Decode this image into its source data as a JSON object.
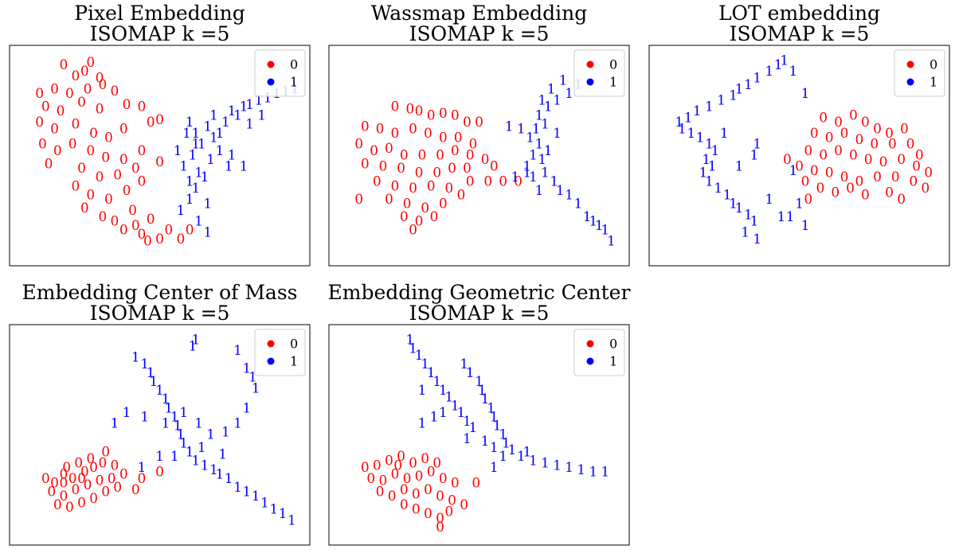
{
  "chart_data": [
    {
      "type": "scatter",
      "title": "Pixel Embedding",
      "subtitle": "ISOMAP k =5",
      "xlim": [
        0,
        100
      ],
      "ylim": [
        0,
        100
      ],
      "legend": "upper right",
      "series": [
        {
          "name": "0",
          "color": "#ff0000",
          "x": [
            27,
            18,
            25,
            22,
            30,
            10,
            15,
            20,
            26,
            31,
            35,
            12,
            17,
            24,
            30,
            39,
            44,
            50,
            47,
            10,
            15,
            22,
            28,
            33,
            38,
            11,
            16,
            21,
            27,
            32,
            38,
            44,
            50,
            13,
            24,
            30,
            36,
            42,
            22,
            27,
            33,
            39,
            44,
            25,
            31,
            35,
            41,
            47,
            38,
            44,
            50,
            53,
            46,
            57,
            60,
            42
          ],
          "values": [
            92,
            91,
            88,
            86,
            85,
            78,
            80,
            78,
            80,
            82,
            79,
            72,
            70,
            74,
            71,
            73,
            72,
            66,
            65,
            65,
            62,
            64,
            60,
            58,
            62,
            55,
            52,
            55,
            52,
            49,
            48,
            52,
            47,
            46,
            44,
            40,
            41,
            44,
            36,
            32,
            30,
            34,
            38,
            26,
            22,
            20,
            25,
            21,
            16,
            14,
            12,
            16,
            11,
            12,
            16,
            18
          ]
        },
        {
          "name": "1",
          "color": "#0000ff",
          "x": [
            57,
            60,
            62,
            63,
            60,
            58,
            61,
            64,
            62,
            66,
            68,
            70,
            67,
            65,
            63,
            66,
            66,
            68,
            72,
            74,
            76,
            78,
            80,
            83,
            86,
            89,
            92,
            95,
            56,
            60,
            70,
            74,
            78,
            73,
            80,
            84,
            62,
            59
          ],
          "values": [
            25,
            30,
            35,
            42,
            38,
            45,
            50,
            55,
            60,
            63,
            58,
            52,
            48,
            40,
            20,
            15,
            28,
            68,
            65,
            70,
            68,
            72,
            73,
            75,
            76,
            78,
            79,
            80,
            52,
            65,
            60,
            50,
            45,
            45,
            64,
            68,
            55,
            60
          ]
        }
      ]
    },
    {
      "type": "scatter",
      "title": "Wassmap Embedding",
      "subtitle": "ISOMAP k =5",
      "xlim": [
        0,
        100
      ],
      "ylim": [
        0,
        100
      ],
      "legend": "upper right",
      "series": [
        {
          "name": "0",
          "color": "#ff0000",
          "x": [
            22,
            27,
            30,
            34,
            38,
            42,
            46,
            50,
            12,
            17,
            22,
            28,
            33,
            38,
            43,
            48,
            10,
            15,
            20,
            25,
            31,
            37,
            42,
            47,
            52,
            12,
            18,
            24,
            30,
            36,
            41,
            46,
            55,
            16,
            22,
            28,
            34,
            40,
            47,
            53,
            10,
            20,
            26,
            32,
            38,
            44,
            25,
            30,
            35,
            28,
            58,
            63
          ],
          "values": [
            72,
            71,
            70,
            68,
            69,
            68,
            65,
            65,
            63,
            62,
            60,
            62,
            60,
            58,
            58,
            55,
            55,
            52,
            53,
            50,
            50,
            50,
            52,
            50,
            48,
            46,
            45,
            44,
            42,
            42,
            44,
            44,
            45,
            38,
            36,
            35,
            36,
            35,
            38,
            38,
            30,
            30,
            28,
            26,
            28,
            32,
            22,
            20,
            22,
            16,
            38,
            38
          ]
        },
        {
          "name": "1",
          "color": "#0000ff",
          "x": [
            83,
            80,
            76,
            73,
            70,
            72,
            69,
            67,
            70,
            68,
            71,
            66,
            68,
            72,
            75,
            77,
            80,
            83,
            86,
            88,
            90,
            92,
            94,
            60,
            64,
            71,
            74,
            78,
            76,
            73,
            70,
            66,
            62
          ],
          "values": [
            82,
            78,
            75,
            72,
            68,
            64,
            62,
            58,
            55,
            50,
            48,
            45,
            40,
            42,
            38,
            34,
            32,
            28,
            22,
            20,
            18,
            16,
            11,
            63,
            62,
            75,
            80,
            84,
            60,
            52,
            34,
            42,
            40
          ]
        }
      ]
    },
    {
      "type": "scatter",
      "title": "LOT embedding",
      "subtitle": "ISOMAP k =5",
      "xlim": [
        0,
        100
      ],
      "ylim": [
        0,
        100
      ],
      "legend": "upper right",
      "series": [
        {
          "name": "0",
          "color": "#ff0000",
          "x": [
            58,
            63,
            68,
            72,
            76,
            80,
            85,
            55,
            60,
            65,
            70,
            75,
            81,
            87,
            90,
            53,
            58,
            63,
            68,
            73,
            78,
            84,
            89,
            93,
            46,
            50,
            55,
            60,
            65,
            70,
            76,
            82,
            88,
            92,
            52,
            57,
            62,
            67,
            72,
            80,
            53,
            84
          ],
          "values": [
            67,
            65,
            68,
            65,
            62,
            60,
            62,
            60,
            58,
            60,
            57,
            55,
            55,
            55,
            50,
            52,
            50,
            52,
            50,
            48,
            47,
            48,
            45,
            42,
            48,
            45,
            43,
            42,
            40,
            38,
            40,
            40,
            38,
            35,
            38,
            35,
            33,
            35,
            32,
            33,
            30,
            30
          ]
        },
        {
          "name": "1",
          "color": "#0000ff",
          "x": [
            45,
            43,
            40,
            36,
            33,
            30,
            28,
            24,
            20,
            16,
            13,
            10,
            11,
            14,
            17,
            20,
            22,
            19,
            21,
            18,
            20,
            23,
            26,
            28,
            30,
            33,
            35,
            32,
            36,
            44,
            47,
            50,
            52,
            40,
            30,
            35,
            25,
            52,
            48,
            36,
            48
          ],
          "values": [
            93,
            91,
            88,
            85,
            82,
            80,
            77,
            75,
            72,
            70,
            67,
            65,
            62,
            60,
            58,
            55,
            52,
            48,
            45,
            42,
            38,
            35,
            32,
            28,
            26,
            23,
            20,
            15,
            12,
            22,
            22,
            28,
            18,
            30,
            45,
            50,
            60,
            78,
            88,
            55,
            43
          ]
        }
      ]
    },
    {
      "type": "scatter",
      "title": "Embedding Center of Mass",
      "subtitle": "ISOMAP k =5",
      "xlim": [
        0,
        100
      ],
      "ylim": [
        0,
        100
      ],
      "legend": "upper right",
      "series": [
        {
          "name": "0",
          "color": "#ff0000",
          "x": [
            12,
            15,
            18,
            21,
            25,
            28,
            31,
            14,
            18,
            22,
            26,
            30,
            34,
            16,
            20,
            24,
            28,
            32,
            36,
            19,
            23,
            27,
            32,
            35,
            38,
            44,
            50,
            42,
            24,
            18
          ],
          "values": [
            30,
            28,
            32,
            30,
            33,
            35,
            37,
            24,
            22,
            25,
            27,
            29,
            30,
            18,
            17,
            19,
            21,
            24,
            26,
            35,
            37,
            39,
            42,
            36,
            32,
            30,
            33,
            25,
            30,
            28
          ]
        },
        {
          "name": "1",
          "color": "#0000ff",
          "x": [
            62,
            61,
            42,
            45,
            47,
            48,
            50,
            52,
            53,
            55,
            56,
            57,
            58,
            60,
            62,
            65,
            68,
            70,
            73,
            76,
            79,
            82,
            85,
            88,
            91,
            94,
            76,
            79,
            81,
            82,
            79,
            76,
            72,
            67,
            63,
            58,
            52,
            45,
            35,
            39,
            55,
            44,
            50,
            71,
            64
          ],
          "values": [
            93,
            90,
            85,
            82,
            78,
            74,
            70,
            66,
            62,
            58,
            54,
            50,
            46,
            42,
            38,
            36,
            34,
            32,
            30,
            26,
            24,
            22,
            19,
            16,
            14,
            11,
            88,
            80,
            76,
            71,
            62,
            55,
            51,
            50,
            55,
            60,
            55,
            58,
            55,
            60,
            40,
            35,
            40,
            41,
            44
          ]
        }
      ]
    },
    {
      "type": "scatter",
      "title": "Embedding Geometric Center",
      "subtitle": "ISOMAP k =5",
      "xlim": [
        0,
        100
      ],
      "ylim": [
        0,
        100
      ],
      "legend": "upper right",
      "series": [
        {
          "name": "0",
          "color": "#ff0000",
          "x": [
            12,
            16,
            20,
            24,
            28,
            32,
            36,
            14,
            18,
            22,
            26,
            30,
            34,
            38,
            42,
            17,
            21,
            25,
            29,
            33,
            37,
            41,
            45,
            25,
            29,
            33,
            37,
            40,
            37,
            49,
            23
          ],
          "values": [
            35,
            36,
            38,
            40,
            37,
            39,
            37,
            30,
            29,
            32,
            30,
            31,
            33,
            30,
            28,
            24,
            22,
            25,
            23,
            25,
            22,
            20,
            18,
            18,
            16,
            14,
            12,
            15,
            8,
            28,
            36
          ]
        },
        {
          "name": "1",
          "color": "#0000ff",
          "x": [
            27,
            28,
            30,
            32,
            34,
            36,
            38,
            40,
            42,
            44,
            46,
            48,
            45,
            47,
            50,
            51,
            52,
            54,
            55,
            56,
            58,
            59,
            61,
            64,
            68,
            72,
            76,
            80,
            84,
            88,
            92,
            31,
            35,
            31,
            38,
            46,
            52,
            55,
            55,
            58,
            66
          ],
          "values": [
            93,
            89,
            86,
            82,
            78,
            74,
            70,
            67,
            63,
            60,
            56,
            53,
            82,
            78,
            74,
            70,
            66,
            62,
            58,
            54,
            50,
            46,
            43,
            40,
            38,
            37,
            36,
            35,
            34,
            33,
            33,
            70,
            58,
            55,
            60,
            48,
            47,
            44,
            35,
            40,
            42
          ]
        }
      ]
    }
  ]
}
